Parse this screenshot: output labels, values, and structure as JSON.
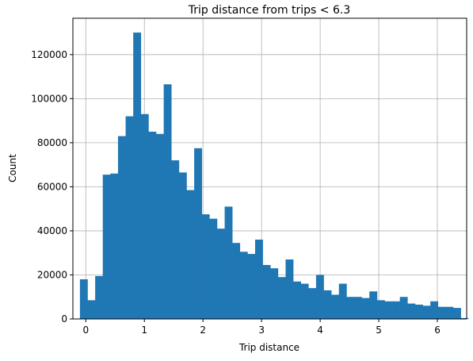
{
  "chart_data": {
    "type": "bar",
    "title": "Trip distance from trips < 6.3",
    "xlabel": "Trip distance",
    "ylabel": "Count",
    "xlim": [
      -0.22,
      6.5
    ],
    "ylim": [
      0,
      136500
    ],
    "xticks": [
      0,
      1,
      2,
      3,
      4,
      5,
      6
    ],
    "yticks": [
      0,
      20000,
      40000,
      60000,
      80000,
      100000,
      120000
    ],
    "grid": true,
    "bar_color": "#1f77b4",
    "bin_start": -0.1,
    "bin_width": 0.13,
    "values": [
      18000,
      8500,
      19500,
      65500,
      66000,
      83000,
      92000,
      130000,
      93000,
      85000,
      84000,
      106500,
      72000,
      66500,
      58500,
      77500,
      47500,
      45500,
      41000,
      51000,
      34500,
      30500,
      29500,
      36000,
      24500,
      23000,
      19000,
      27000,
      17000,
      16000,
      14000,
      20000,
      13000,
      11000,
      16000,
      10000,
      10000,
      9500,
      12500,
      8500,
      8000,
      8000,
      10000,
      7000,
      6500,
      6000,
      8000,
      5500,
      5500,
      5000,
      400
    ]
  }
}
